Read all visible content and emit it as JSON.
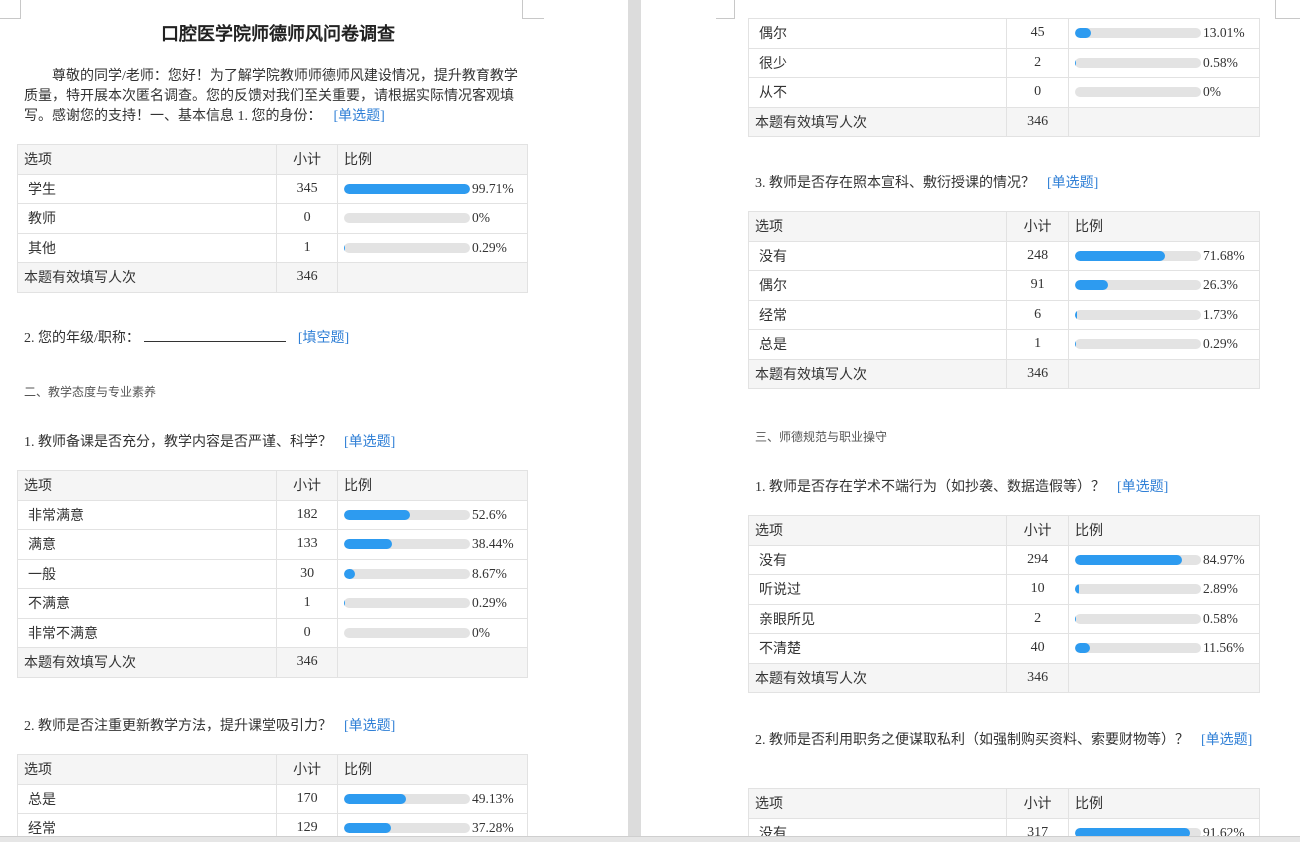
{
  "left_page": {
    "title": "口腔医学院师德师风问卷调查",
    "intro": "尊敬的同学/老师：您好！为了解学院教师师德师风建设情况，提升教育教学质量，特开展本次匿名调查。您的反馈对我们至关重要，请根据实际情况客观填写。感谢您的支持！一、基本信息 1. 您的身份：",
    "intro_tag": "[单选题]",
    "blocks": [
      {
        "type": "table",
        "header": [
          "选项",
          "小计",
          "比例"
        ],
        "rows": [
          [
            "学生",
            "345",
            "99.71%"
          ],
          [
            "教师",
            "0",
            "0%"
          ],
          [
            "其他",
            "1",
            "0.29%"
          ]
        ],
        "total": [
          "本题有效填写人次",
          "346"
        ]
      },
      {
        "type": "fill",
        "text": "2. 您的年级/职称：",
        "tag": "[填空题]"
      },
      {
        "type": "section",
        "text": "二、教学态度与专业素养"
      },
      {
        "type": "question",
        "text": "1. 教师备课是否充分，教学内容是否严谨、科学？",
        "tag": "[单选题]"
      },
      {
        "type": "table",
        "header": [
          "选项",
          "小计",
          "比例"
        ],
        "rows": [
          [
            "非常满意",
            "182",
            "52.6%"
          ],
          [
            "满意",
            "133",
            "38.44%"
          ],
          [
            "一般",
            "30",
            "8.67%"
          ],
          [
            "不满意",
            "1",
            "0.29%"
          ],
          [
            "非常不满意",
            "0",
            "0%"
          ]
        ],
        "total": [
          "本题有效填写人次",
          "346"
        ]
      },
      {
        "type": "question",
        "text": "2. 教师是否注重更新教学方法，提升课堂吸引力？",
        "tag": "[单选题]"
      },
      {
        "type": "table",
        "header": [
          "选项",
          "小计",
          "比例"
        ],
        "rows": [
          [
            "总是",
            "170",
            "49.13%"
          ],
          [
            "经常",
            "129",
            "37.28%"
          ]
        ]
      }
    ]
  },
  "right_page": {
    "blocks": [
      {
        "type": "table",
        "rows": [
          [
            "偶尔",
            "45",
            "13.01%"
          ],
          [
            "很少",
            "2",
            "0.58%"
          ],
          [
            "从不",
            "0",
            "0%"
          ]
        ],
        "total": [
          "本题有效填写人次",
          "346"
        ]
      },
      {
        "type": "question",
        "text": "3. 教师是否存在照本宣科、敷衍授课的情况？",
        "tag": "[单选题]"
      },
      {
        "type": "table",
        "header": [
          "选项",
          "小计",
          "比例"
        ],
        "rows": [
          [
            "没有",
            "248",
            "71.68%"
          ],
          [
            "偶尔",
            "91",
            "26.3%"
          ],
          [
            "经常",
            "6",
            "1.73%"
          ],
          [
            "总是",
            "1",
            "0.29%"
          ]
        ],
        "total": [
          "本题有效填写人次",
          "346"
        ]
      },
      {
        "type": "section",
        "text": "三、师德规范与职业操守"
      },
      {
        "type": "question",
        "text": "1. 教师是否存在学术不端行为（如抄袭、数据造假等）？",
        "tag": "[单选题]"
      },
      {
        "type": "table",
        "header": [
          "选项",
          "小计",
          "比例"
        ],
        "rows": [
          [
            "没有",
            "294",
            "84.97%"
          ],
          [
            "听说过",
            "10",
            "2.89%"
          ],
          [
            "亲眼所见",
            "2",
            "0.58%"
          ],
          [
            "不清楚",
            "40",
            "11.56%"
          ]
        ],
        "total": [
          "本题有效填写人次",
          "346"
        ]
      },
      {
        "type": "question",
        "text": "2. 教师是否利用职务之便谋取私利（如强制购买资料、索要财物等）？",
        "tag": "[单选题]"
      },
      {
        "type": "table",
        "header": [
          "选项",
          "小计",
          "比例"
        ],
        "rows": [
          [
            "没有",
            "317",
            "91.62%"
          ]
        ]
      }
    ]
  },
  "colors": {
    "bar_fill": "#2d9bf0",
    "bar_track": "#e3e3e3",
    "tag": "#2f7fd6",
    "header_bg": "#f5f5f5"
  }
}
